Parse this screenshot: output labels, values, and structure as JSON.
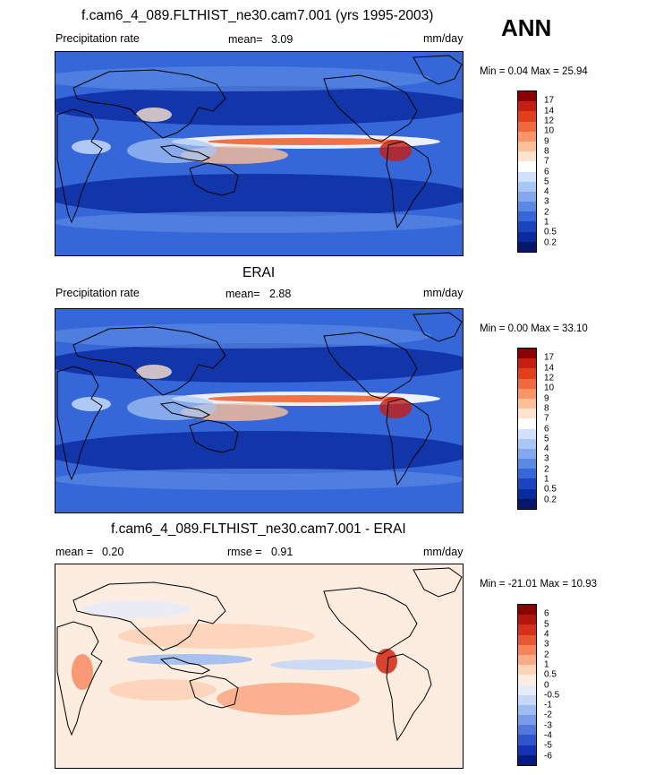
{
  "season": "ANN",
  "panels": [
    {
      "title": "f.cam6_4_089.FLTHIST_ne30.cam7.001 (yrs 1995-2003)",
      "left_label": "Precipitation rate",
      "stat1_label": "mean=",
      "stat1_value": "3.09",
      "stat2_label": "",
      "stat2_value": "",
      "units": "mm/day",
      "minmax": "Min =   0.04 Max =  25.94",
      "colorbar_labels": [
        "17",
        "14",
        "12",
        "10",
        "9",
        "8",
        "7",
        "6",
        "5",
        "4",
        "3",
        "2",
        "1",
        "0.5",
        "0.2"
      ],
      "colorbar_colors": [
        "#8b0000",
        "#c81d11",
        "#e43f1b",
        "#f06a3d",
        "#f99567",
        "#fdbf98",
        "#fde2cd",
        "#ffffff",
        "#cfe1fb",
        "#a9c7f5",
        "#82a9ee",
        "#5a89e4",
        "#3567d8",
        "#1b44c0",
        "#0a2b9e",
        "#06166b"
      ],
      "field": "precip"
    },
    {
      "title": "ERAI",
      "left_label": "Precipitation rate",
      "stat1_label": "mean=",
      "stat1_value": "2.88",
      "stat2_label": "",
      "stat2_value": "",
      "units": "mm/day",
      "minmax": "Min =   0.00 Max =  33.10",
      "colorbar_labels": [
        "17",
        "14",
        "12",
        "10",
        "9",
        "8",
        "7",
        "6",
        "5",
        "4",
        "3",
        "2",
        "1",
        "0.5",
        "0.2"
      ],
      "colorbar_colors": [
        "#8b0000",
        "#c81d11",
        "#e43f1b",
        "#f06a3d",
        "#f99567",
        "#fdbf98",
        "#fde2cd",
        "#ffffff",
        "#cfe1fb",
        "#a9c7f5",
        "#82a9ee",
        "#5a89e4",
        "#3567d8",
        "#1b44c0",
        "#0a2b9e",
        "#06166b"
      ],
      "field": "precip"
    },
    {
      "title": "f.cam6_4_089.FLTHIST_ne30.cam7.001 - ERAI",
      "left_label": "mean =",
      "left_value": "0.20",
      "stat1_label": "rmse =",
      "stat1_value": "0.91",
      "units": "mm/day",
      "minmax": "Min = -21.01 Max =  10.93",
      "colorbar_labels": [
        "6",
        "5",
        "4",
        "3",
        "2",
        "1",
        "0.5",
        "0",
        "-0.5",
        "-1",
        "-2",
        "-3",
        "-4",
        "-5",
        "-6"
      ],
      "colorbar_colors": [
        "#8b0000",
        "#b5160c",
        "#d3311b",
        "#e85632",
        "#f6835a",
        "#fbab86",
        "#fdd3b8",
        "#fdece0",
        "#e4ecfa",
        "#c6d8f6",
        "#9fbcf0",
        "#7a9ce8",
        "#5278dc",
        "#2f55cd",
        "#1533b0",
        "#071a80"
      ],
      "field": "diff"
    }
  ]
}
